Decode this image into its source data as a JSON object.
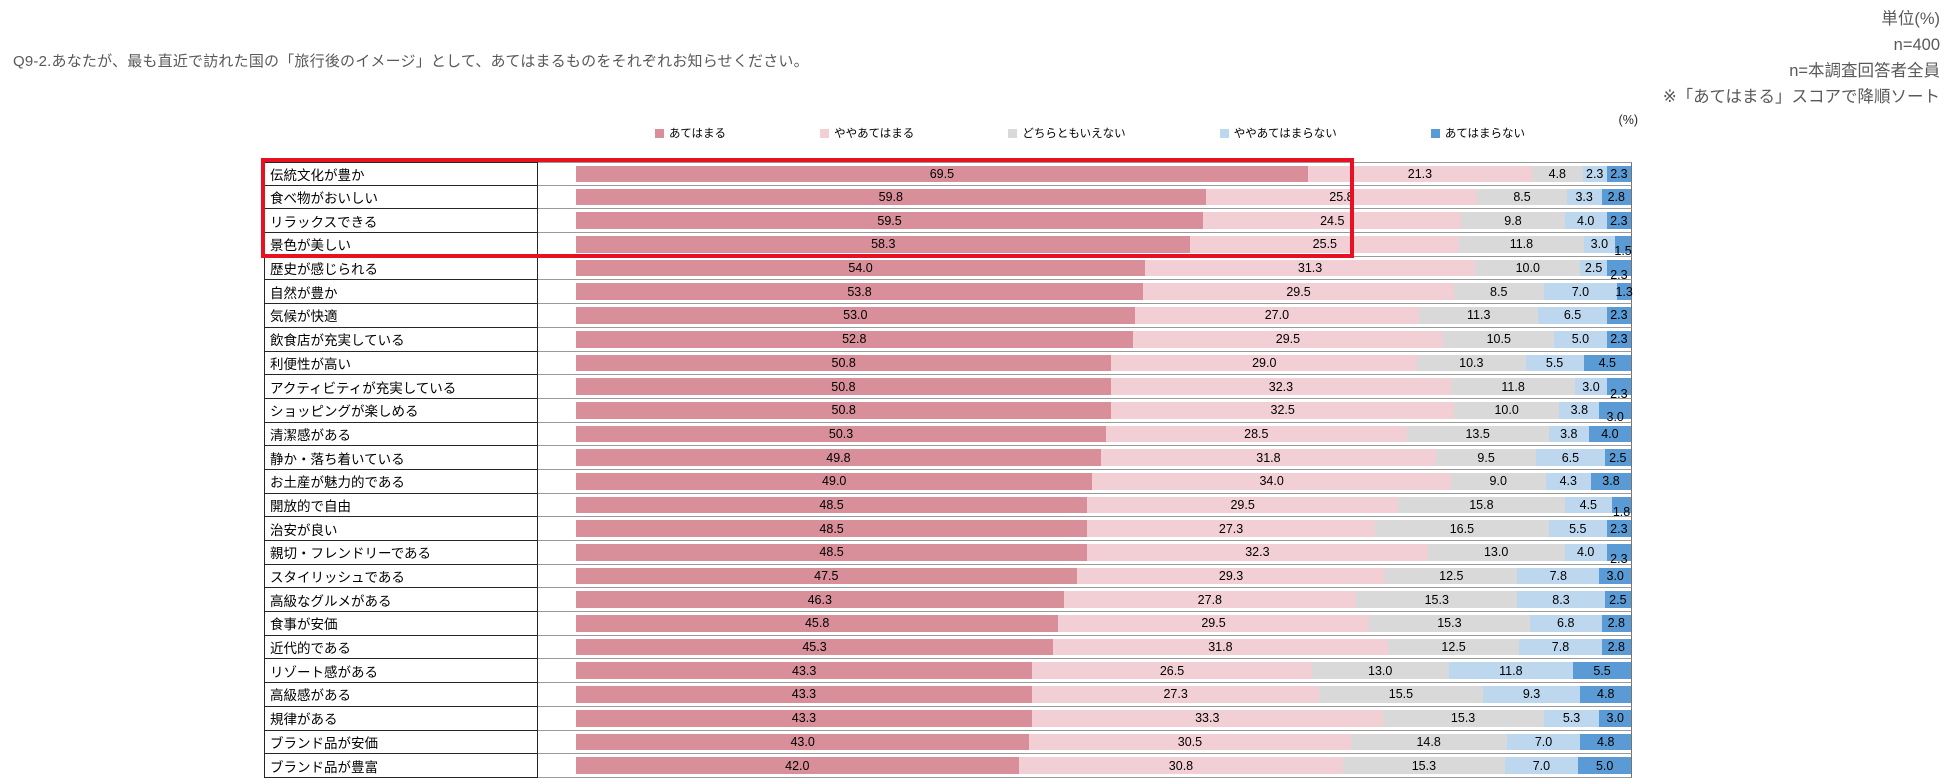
{
  "header": {
    "title": "Q9-2.あなたが、最も直近で訪れた国の「旅行後のイメージ」として、あてはまるものをそれぞれお知らせください。",
    "meta_lines": [
      "単位(%)",
      "n=400",
      "n=本調査回答者全員",
      "※「あてはまる」スコアで降順ソート"
    ]
  },
  "chart_data": {
    "type": "bar",
    "orientation": "horizontal-stacked",
    "axis_unit_label": "(%)",
    "xlim": [
      0,
      100
    ],
    "legend_position": "top",
    "grid": false,
    "highlight_color": "#e81123",
    "highlighted_rows": [
      1,
      2,
      3,
      4
    ],
    "stagger_last_value_rows": [
      4,
      5,
      10,
      11,
      15,
      17
    ],
    "categories": [
      "伝統文化が豊か",
      "食べ物がおいしい",
      "リラックスできる",
      "景色が美しい",
      "歴史が感じられる",
      "自然が豊か",
      "気候が快適",
      "飲食店が充実している",
      "利便性が高い",
      "アクティビティが充実している",
      "ショッピングが楽しめる",
      "清潔感がある",
      "静か・落ち着いている",
      "お土産が魅力的である",
      "開放的で自由",
      "治安が良い",
      "親切・フレンドリーである",
      "スタイリッシュである",
      "高級なグルメがある",
      "食事が安価",
      "近代的である",
      "リゾート感がある",
      "高級感がある",
      "規律がある",
      "ブランド品が安価",
      "ブランド品が豊富"
    ],
    "series": [
      {
        "name": "あてはまる",
        "color": "#d98f9a",
        "values": [
          69.5,
          59.8,
          59.5,
          58.3,
          54.0,
          53.8,
          53.0,
          52.8,
          50.8,
          50.8,
          50.8,
          50.3,
          49.8,
          49.0,
          48.5,
          48.5,
          48.5,
          47.5,
          46.3,
          45.8,
          45.3,
          43.3,
          43.3,
          43.3,
          43.0,
          42.0
        ]
      },
      {
        "name": "ややあてはまる",
        "color": "#f2ced5",
        "values": [
          21.3,
          25.8,
          24.5,
          25.5,
          31.3,
          29.5,
          27.0,
          29.5,
          29.0,
          32.3,
          32.5,
          28.5,
          31.8,
          34.0,
          29.5,
          27.3,
          32.3,
          29.3,
          27.8,
          29.5,
          31.8,
          26.5,
          27.3,
          33.3,
          30.5,
          30.8
        ]
      },
      {
        "name": "どちらともいえない",
        "color": "#d9d9d9",
        "values": [
          4.8,
          8.5,
          9.8,
          11.8,
          10.0,
          8.5,
          11.3,
          10.5,
          10.3,
          11.8,
          10.0,
          13.5,
          9.5,
          9.0,
          15.8,
          16.5,
          13.0,
          12.5,
          15.3,
          15.3,
          12.5,
          13.0,
          15.5,
          15.3,
          14.8,
          15.3
        ]
      },
      {
        "name": "ややあてはまらない",
        "color": "#bdd7ee",
        "values": [
          2.3,
          3.3,
          4.0,
          3.0,
          2.5,
          7.0,
          6.5,
          5.0,
          5.5,
          3.0,
          3.8,
          3.8,
          6.5,
          4.3,
          4.5,
          5.5,
          4.0,
          7.8,
          8.3,
          6.8,
          7.8,
          11.8,
          9.3,
          5.3,
          7.0,
          7.0
        ]
      },
      {
        "name": "あてはまらない",
        "color": "#5b9bd5",
        "values": [
          2.3,
          2.8,
          2.3,
          1.5,
          2.3,
          1.3,
          2.3,
          2.3,
          4.5,
          2.3,
          3.0,
          4.0,
          2.5,
          3.8,
          1.8,
          2.3,
          2.3,
          3.0,
          2.5,
          2.8,
          2.8,
          5.5,
          4.8,
          3.0,
          4.8,
          5.0
        ]
      }
    ]
  }
}
